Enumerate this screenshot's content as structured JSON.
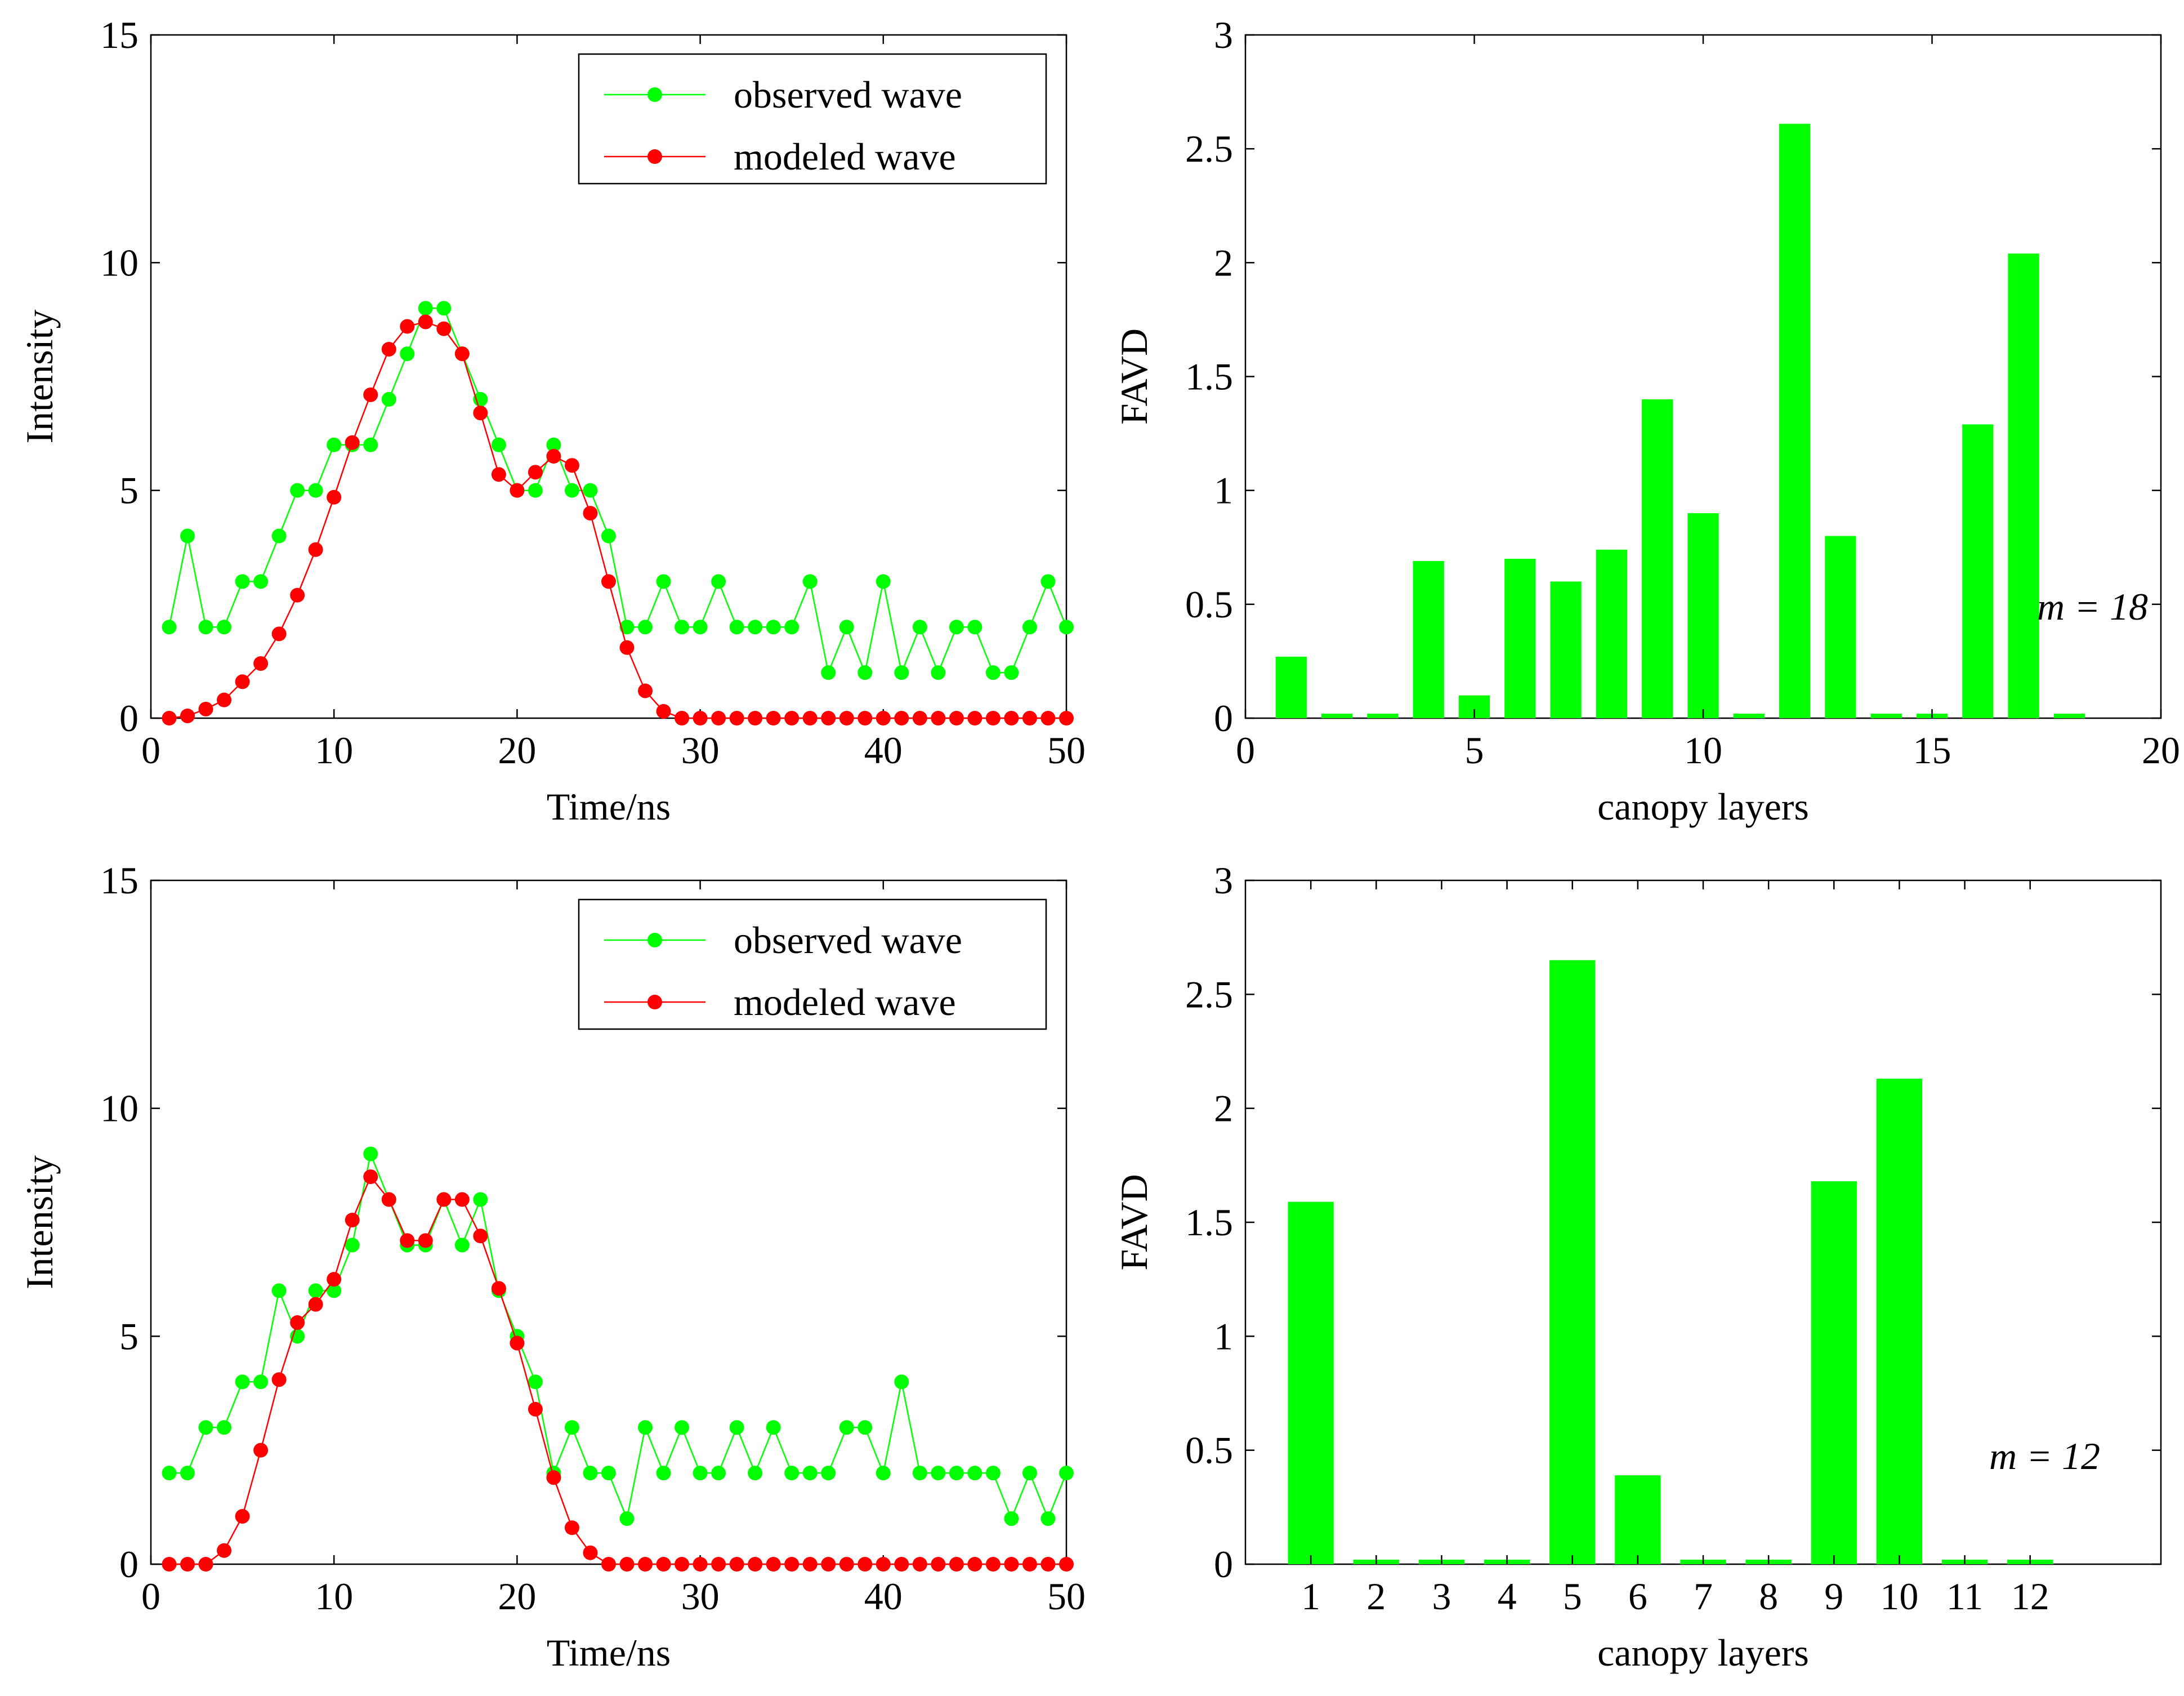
{
  "colors": {
    "observed": "#00ff00",
    "modeled": "#ff0000",
    "bar": "#00ff00",
    "axis": "#000000"
  },
  "chart_data": [
    {
      "type": "line",
      "xlabel": "Time/ns",
      "ylabel": "Intensity",
      "xlim": [
        0,
        50
      ],
      "ylim": [
        0,
        15
      ],
      "xticks": [
        "0",
        "10",
        "20",
        "30",
        "40",
        "50"
      ],
      "yticks": [
        "0",
        "5",
        "10",
        "15"
      ],
      "legend_position": "top-right",
      "x": [
        1,
        2,
        3,
        4,
        5,
        6,
        7,
        8,
        9,
        10,
        11,
        12,
        13,
        14,
        15,
        16,
        17,
        18,
        19,
        20,
        21,
        22,
        23,
        24,
        25,
        26,
        27,
        28,
        29,
        30,
        31,
        32,
        33,
        34,
        35,
        36,
        37,
        38,
        39,
        40,
        41,
        42,
        43,
        44,
        45,
        46,
        47,
        48,
        49,
        50
      ],
      "series": [
        {
          "name": "observed wave",
          "color": "#00ff00",
          "values": [
            2,
            4,
            2,
            2,
            3,
            3,
            4,
            5,
            5,
            6,
            6,
            6,
            7,
            8,
            9,
            9,
            8,
            7,
            6,
            5,
            5,
            6,
            5,
            5,
            4,
            2,
            2,
            3,
            2,
            2,
            3,
            2,
            2,
            2,
            2,
            3,
            1,
            2,
            1,
            3,
            1,
            2,
            1,
            2,
            2,
            1,
            1,
            2,
            3,
            2
          ]
        },
        {
          "name": "modeled wave",
          "color": "#ff0000",
          "values": [
            0,
            0.05,
            0.2,
            0.4,
            0.8,
            1.2,
            1.85,
            2.7,
            3.7,
            4.85,
            6.05,
            7.1,
            8.1,
            8.6,
            8.7,
            8.55,
            8.0,
            6.7,
            5.35,
            5.0,
            5.4,
            5.75,
            5.55,
            4.5,
            3.0,
            1.55,
            0.6,
            0.15,
            0,
            0,
            0,
            0,
            0,
            0,
            0,
            0,
            0,
            0,
            0,
            0,
            0,
            0,
            0,
            0,
            0,
            0,
            0,
            0,
            0,
            0
          ]
        }
      ]
    },
    {
      "type": "bar",
      "xlabel": "canopy layers",
      "ylabel": "FAVD",
      "xlim": [
        0,
        20
      ],
      "ylim": [
        0,
        3
      ],
      "xticks": [
        "0",
        "5",
        "10",
        "15",
        "20"
      ],
      "yticks": [
        "0",
        "0.5",
        "1",
        "1.5",
        "2",
        "2.5",
        "3"
      ],
      "annotation": "m = 18",
      "categories": [
        1,
        2,
        3,
        4,
        5,
        6,
        7,
        8,
        9,
        10,
        11,
        12,
        13,
        14,
        15,
        16,
        17,
        18
      ],
      "values": [
        0.27,
        0.02,
        0.02,
        0.69,
        0.1,
        0.7,
        0.6,
        0.74,
        1.4,
        0.9,
        0.02,
        2.61,
        0.8,
        0.02,
        0.02,
        1.29,
        2.04,
        0.02
      ]
    },
    {
      "type": "line",
      "xlabel": "Time/ns",
      "ylabel": "Intensity",
      "xlim": [
        0,
        50
      ],
      "ylim": [
        0,
        15
      ],
      "xticks": [
        "0",
        "10",
        "20",
        "30",
        "40",
        "50"
      ],
      "yticks": [
        "0",
        "5",
        "10",
        "15"
      ],
      "legend_position": "top-right",
      "x": [
        1,
        2,
        3,
        4,
        5,
        6,
        7,
        8,
        9,
        10,
        11,
        12,
        13,
        14,
        15,
        16,
        17,
        18,
        19,
        20,
        21,
        22,
        23,
        24,
        25,
        26,
        27,
        28,
        29,
        30,
        31,
        32,
        33,
        34,
        35,
        36,
        37,
        38,
        39,
        40,
        41,
        42,
        43,
        44,
        45,
        46,
        47,
        48,
        49,
        50
      ],
      "series": [
        {
          "name": "observed wave",
          "color": "#00ff00",
          "values": [
            2,
            2,
            3,
            3,
            4,
            4,
            6,
            5,
            6,
            6,
            7,
            9,
            8,
            7,
            7,
            8,
            7,
            8,
            6,
            5,
            4,
            2,
            3,
            2,
            2,
            1,
            3,
            2,
            3,
            2,
            2,
            3,
            2,
            3,
            2,
            2,
            2,
            3,
            3,
            2,
            4,
            2,
            2,
            2,
            2,
            2,
            1,
            2,
            1,
            2
          ]
        },
        {
          "name": "modeled wave",
          "color": "#ff0000",
          "values": [
            0,
            0,
            0,
            0.3,
            1.05,
            2.5,
            4.05,
            5.3,
            5.7,
            6.25,
            7.55,
            8.5,
            8.0,
            7.1,
            7.1,
            8.0,
            8.0,
            7.2,
            6.05,
            4.85,
            3.4,
            1.9,
            0.8,
            0.25,
            0,
            0,
            0,
            0,
            0,
            0,
            0,
            0,
            0,
            0,
            0,
            0,
            0,
            0,
            0,
            0,
            0,
            0,
            0,
            0,
            0,
            0,
            0,
            0,
            0,
            0
          ]
        }
      ]
    },
    {
      "type": "bar",
      "xlabel": "canopy layers",
      "ylabel": "FAVD",
      "xlim": [
        0,
        14
      ],
      "ylim": [
        0,
        3
      ],
      "xticks": [
        "1",
        "2",
        "3",
        "4",
        "5",
        "6",
        "7",
        "8",
        "9",
        "10",
        "11",
        "12"
      ],
      "yticks": [
        "0",
        "0.5",
        "1",
        "1.5",
        "2",
        "2.5",
        "3"
      ],
      "annotation": "m = 12",
      "categories": [
        1,
        2,
        3,
        4,
        5,
        6,
        7,
        8,
        9,
        10,
        11,
        12
      ],
      "values": [
        1.59,
        0.02,
        0.02,
        0.02,
        2.65,
        0.39,
        0.02,
        0.02,
        1.68,
        2.13,
        0.02,
        0.02
      ]
    }
  ]
}
